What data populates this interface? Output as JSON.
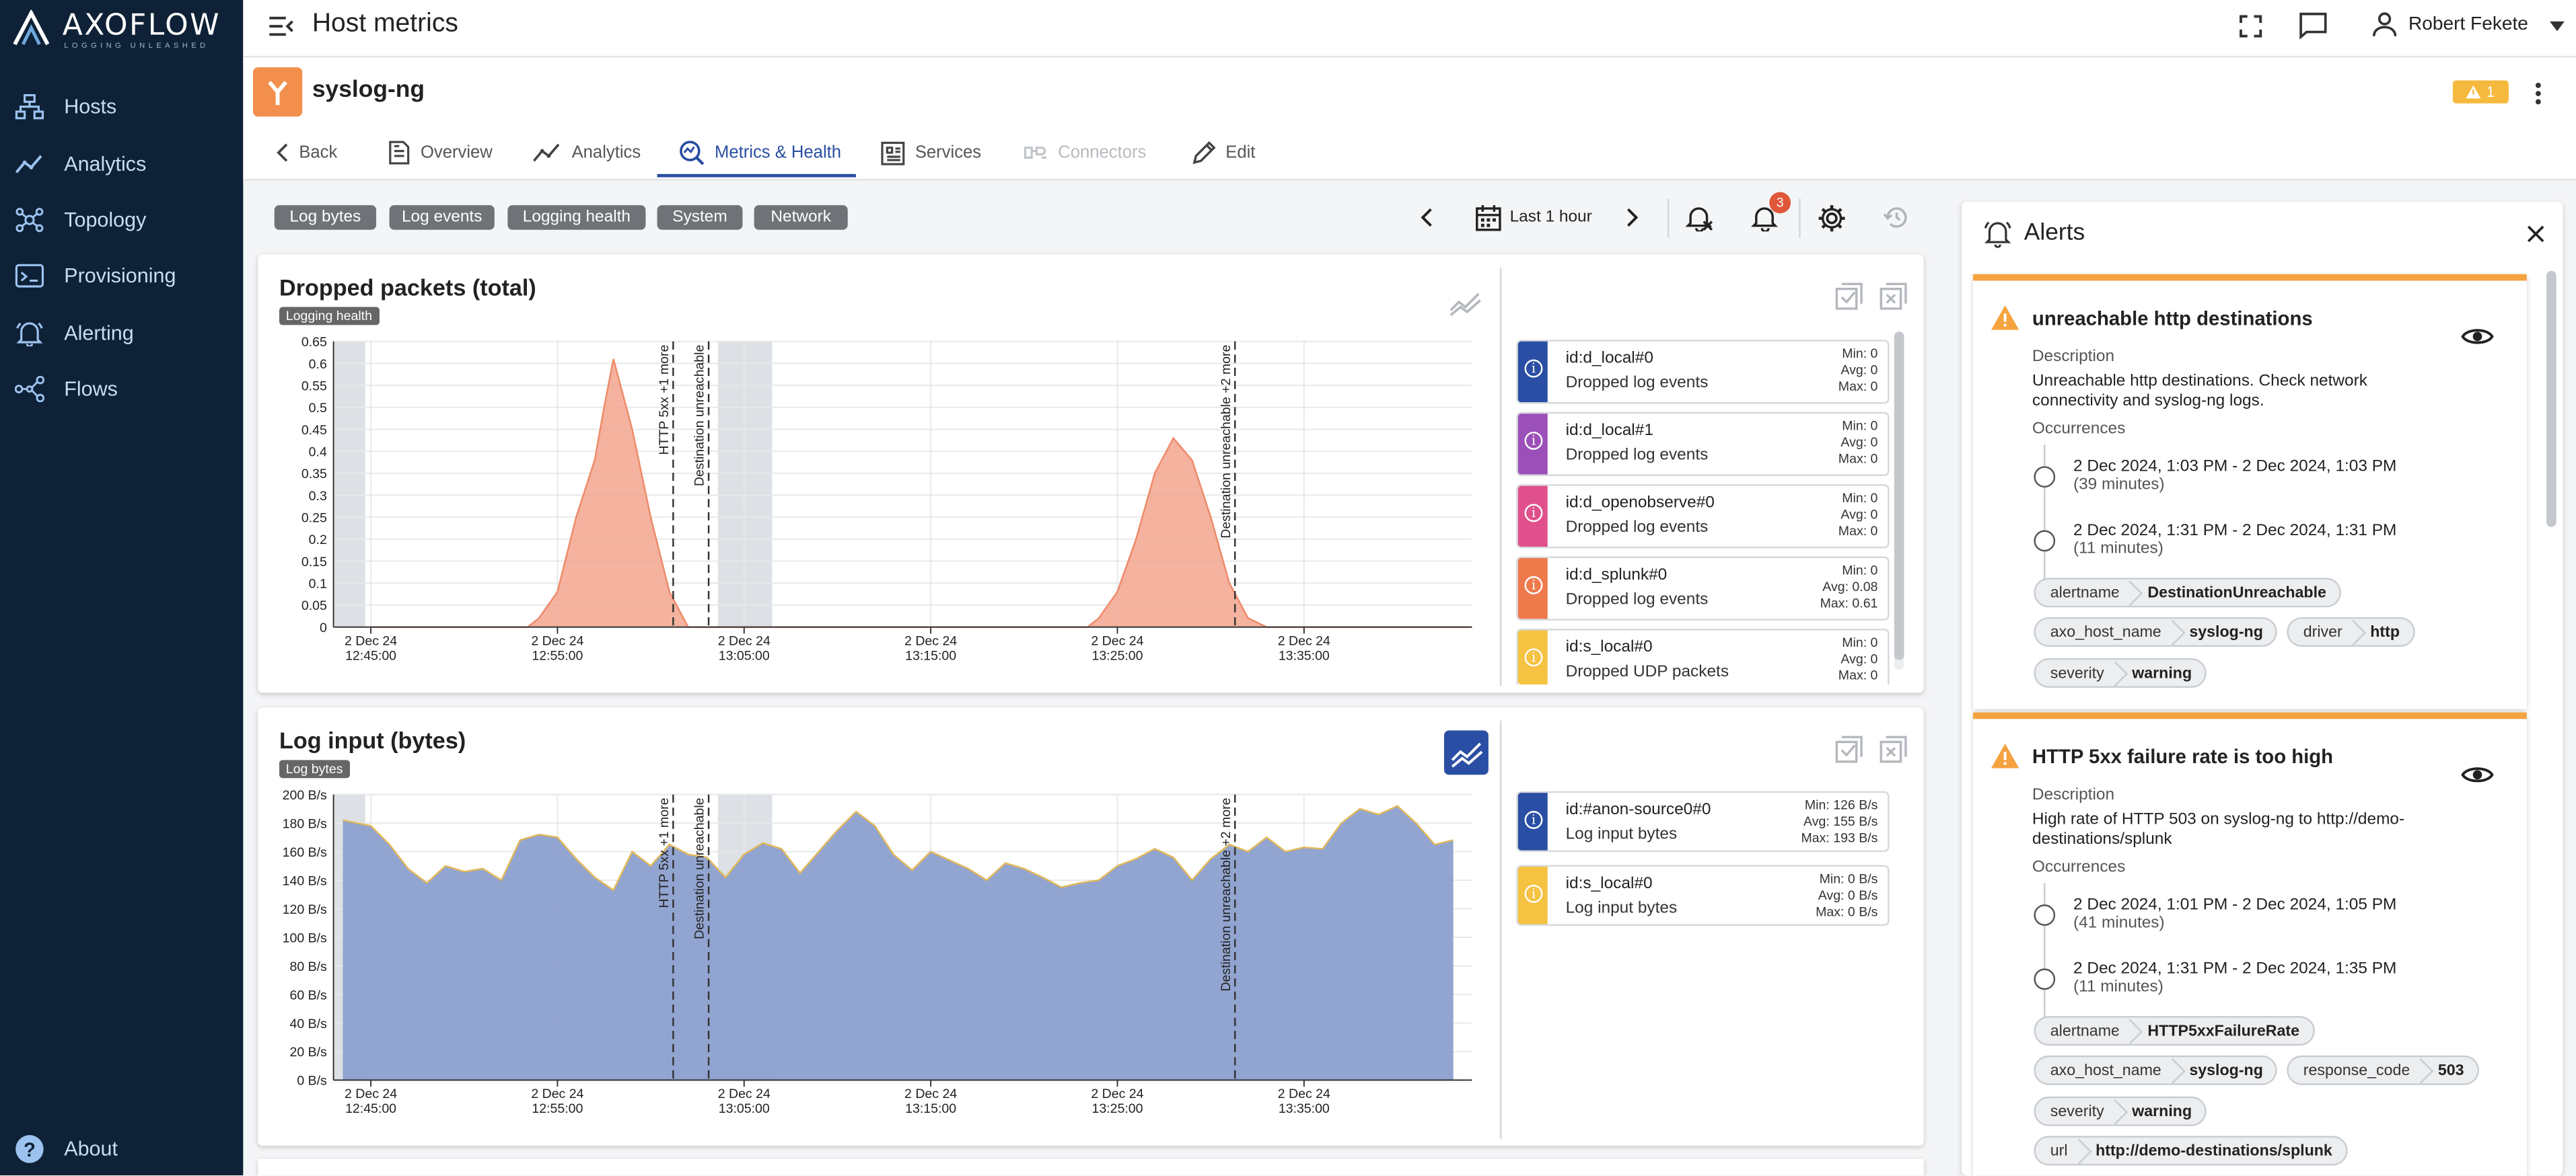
{
  "app": {
    "brand": "AXOFLOW",
    "tagline": "LOGGING UNLEASHED",
    "page_title": "Host metrics",
    "user": "Robert Fekete",
    "warning_badge": "1"
  },
  "sidebar": {
    "items": [
      {
        "label": "Hosts",
        "icon": "hosts-icon"
      },
      {
        "label": "Analytics",
        "icon": "analytics-icon"
      },
      {
        "label": "Topology",
        "icon": "topology-icon"
      },
      {
        "label": "Provisioning",
        "icon": "provisioning-icon"
      },
      {
        "label": "Alerting",
        "icon": "alerting-icon"
      },
      {
        "label": "Flows",
        "icon": "flows-icon"
      }
    ],
    "about": "About"
  },
  "host": {
    "name": "syslog-ng"
  },
  "tabs": [
    {
      "label": "Back",
      "icon": "chevron-left-icon"
    },
    {
      "label": "Overview",
      "icon": "document-icon"
    },
    {
      "label": "Analytics",
      "icon": "analytics-icon"
    },
    {
      "label": "Metrics & Health",
      "icon": "metrics-icon",
      "active": true
    },
    {
      "label": "Services",
      "icon": "services-icon"
    },
    {
      "label": "Connectors",
      "icon": "connectors-icon",
      "disabled": true
    },
    {
      "label": "Edit",
      "icon": "pencil-icon"
    }
  ],
  "filters": [
    "Log bytes",
    "Log events",
    "Logging health",
    "System",
    "Network"
  ],
  "time_range": {
    "label": "Last 1 hour",
    "alert_count": "3"
  },
  "colors": {
    "accent": "#2a4ea3",
    "sidebar": "#0e2136",
    "warning": "#f4a340",
    "orange_fill": "#f2a58e",
    "blue_fill": "#8c9fce"
  },
  "charts": [
    {
      "title": "Dropped packets (total)",
      "tag": "Logging health",
      "legend": [
        {
          "name": "id:d_local#0",
          "desc": "Dropped log events",
          "color": "#2a4ea3",
          "min": "Min:  0",
          "avg": "Avg:  0",
          "max": "Max:  0"
        },
        {
          "name": "id:d_local#1",
          "desc": "Dropped log events",
          "color": "#9b4fb8",
          "min": "Min:  0",
          "avg": "Avg:  0",
          "max": "Max:  0"
        },
        {
          "name": "id:d_openobserve#0",
          "desc": "Dropped log events",
          "color": "#e0508c",
          "min": "Min:  0",
          "avg": "Avg:  0",
          "max": "Max:  0"
        },
        {
          "name": "id:d_splunk#0",
          "desc": "Dropped log events",
          "color": "#ee7a4c",
          "min": "Min:  0",
          "avg": "Avg: 0.08",
          "max": "Max: 0.61"
        },
        {
          "name": "id:s_local#0",
          "desc": "Dropped UDP packets",
          "color": "#f5c242",
          "min": "Min:  0",
          "avg": "Avg:  0",
          "max": "Max:  0"
        }
      ]
    },
    {
      "title": "Log input (bytes)",
      "tag": "Log bytes",
      "legend": [
        {
          "name": "id:#anon-source0#0",
          "desc": "Log input bytes",
          "color": "#2a4ea3",
          "min": "Min:  126 B/s",
          "avg": "Avg:  155 B/s",
          "max": "Max:  193 B/s"
        },
        {
          "name": "id:s_local#0",
          "desc": "Log input bytes",
          "color": "#f5c242",
          "min": "Min:  0 B/s",
          "avg": "Avg:  0 B/s",
          "max": "Max:  0 B/s"
        }
      ]
    }
  ],
  "chart_data": [
    {
      "type": "area",
      "title": "Dropped packets (total)",
      "x_ticks": [
        [
          "2 Dec 24",
          "12:45:00"
        ],
        [
          "2 Dec 24",
          "12:55:00"
        ],
        [
          "2 Dec 24",
          "13:05:00"
        ],
        [
          "2 Dec 24",
          "13:15:00"
        ],
        [
          "2 Dec 24",
          "13:25:00"
        ],
        [
          "2 Dec 24",
          "13:35:00"
        ]
      ],
      "x": [
        0,
        5,
        8.4,
        9,
        10,
        11,
        12,
        12.5,
        13,
        14,
        15,
        16,
        17,
        18,
        19,
        21,
        24,
        27,
        30,
        33,
        36,
        38.4,
        39,
        40,
        41,
        42,
        43,
        44,
        45,
        46,
        47,
        48,
        50,
        53,
        56,
        59
      ],
      "ylim": [
        0,
        0.65
      ],
      "y_ticks": [
        "0",
        "0.05",
        "0.1",
        "0.15",
        "0.2",
        "0.25",
        "0.3",
        "0.35",
        "0.4",
        "0.45",
        "0.5",
        "0.55",
        "0.6",
        "0.65"
      ],
      "series": [
        {
          "values": [
            0,
            0,
            0,
            0.02,
            0.08,
            0.25,
            0.38,
            0.5,
            0.61,
            0.45,
            0.25,
            0.08,
            0,
            0,
            0,
            0,
            0,
            0,
            0,
            0,
            0,
            0,
            0.02,
            0.08,
            0.2,
            0.35,
            0.43,
            0.38,
            0.25,
            0.1,
            0.02,
            0,
            0,
            0,
            0,
            0
          ]
        }
      ],
      "annotations": [
        "HTTP 5xx +1 more",
        "Destination unreachable",
        "Destination unreachable +2 more"
      ]
    },
    {
      "type": "area",
      "title": "Log input (bytes)",
      "x_ticks": [
        [
          "2 Dec 24",
          "12:45:00"
        ],
        [
          "2 Dec 24",
          "12:55:00"
        ],
        [
          "2 Dec 24",
          "13:05:00"
        ],
        [
          "2 Dec 24",
          "13:15:00"
        ],
        [
          "2 Dec 24",
          "13:25:00"
        ],
        [
          "2 Dec 24",
          "13:35:00"
        ]
      ],
      "x": [
        -1.5,
        0,
        1,
        2,
        3,
        4,
        5,
        6,
        7,
        8,
        9,
        10,
        11,
        12,
        13,
        14,
        15,
        16,
        17,
        18,
        19,
        20,
        21,
        22,
        23,
        24,
        25,
        26,
        27,
        28,
        29,
        30,
        31,
        32,
        33,
        34,
        35,
        36,
        37,
        38,
        39,
        40,
        41,
        42,
        43,
        44,
        45,
        46,
        47,
        48,
        49,
        50,
        51,
        52,
        53,
        54,
        55,
        56,
        57,
        58
      ],
      "ylim": [
        0,
        200
      ],
      "y_ticks": [
        "0 B/s",
        "20 B/s",
        "40 B/s",
        "60 B/s",
        "80 B/s",
        "100 B/s",
        "120 B/s",
        "140 B/s",
        "160 B/s",
        "180 B/s",
        "200 B/s"
      ],
      "series": [
        {
          "values": [
            182,
            178,
            165,
            148,
            138,
            150,
            146,
            148,
            140,
            168,
            172,
            170,
            155,
            142,
            133,
            160,
            150,
            165,
            158,
            156,
            142,
            158,
            166,
            162,
            145,
            160,
            175,
            188,
            178,
            158,
            147,
            160,
            154,
            148,
            140,
            152,
            148,
            142,
            135,
            138,
            140,
            150,
            155,
            162,
            156,
            140,
            155,
            165,
            160,
            170,
            160,
            163,
            162,
            180,
            190,
            186,
            192,
            180,
            165,
            168
          ]
        }
      ],
      "annotations": [
        "HTTP 5xx +1 more",
        "Destination unreachable",
        "Destination unreachable +2 more"
      ]
    }
  ],
  "alerts_panel": {
    "title": "Alerts",
    "labels": {
      "description": "Description",
      "occurrences": "Occurrences"
    },
    "items": [
      {
        "title": "unreachable http destinations",
        "description": "Unreachable http destinations. Check network connectivity and syslog-ng logs.",
        "occurrences": [
          {
            "range": "2 Dec 2024, 1:03 PM - 2 Dec 2024, 1:03 PM",
            "duration": "(39 minutes)"
          },
          {
            "range": "2 Dec 2024, 1:31 PM - 2 Dec 2024, 1:31 PM",
            "duration": "(11 minutes)"
          }
        ],
        "labels": [
          {
            "k": "alertname",
            "v": "DestinationUnreachable"
          },
          {
            "k": "axo_host_name",
            "v": "syslog-ng"
          },
          {
            "k": "driver",
            "v": "http"
          },
          {
            "k": "severity",
            "v": "warning"
          }
        ]
      },
      {
        "title": "HTTP 5xx failure rate is too high",
        "description": "High rate of HTTP 503 on syslog-ng to http://demo-destinations/splunk",
        "occurrences": [
          {
            "range": "2 Dec 2024, 1:01 PM - 2 Dec 2024, 1:05 PM",
            "duration": "(41 minutes)"
          },
          {
            "range": "2 Dec 2024, 1:31 PM - 2 Dec 2024, 1:35 PM",
            "duration": "(11 minutes)"
          }
        ],
        "labels": [
          {
            "k": "alertname",
            "v": "HTTP5xxFailureRate"
          },
          {
            "k": "axo_host_name",
            "v": "syslog-ng"
          },
          {
            "k": "response_code",
            "v": "503"
          },
          {
            "k": "severity",
            "v": "warning"
          },
          {
            "k": "url",
            "v": "http://demo-destinations/splunk"
          }
        ]
      }
    ]
  }
}
